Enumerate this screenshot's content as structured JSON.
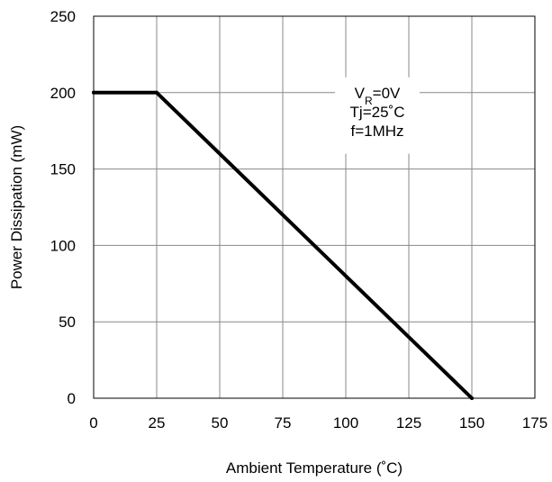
{
  "chart_data": {
    "type": "line",
    "title": "",
    "xlabel": "Ambient Temperature (˚C)",
    "ylabel": "Power Dissipation (mW)",
    "xlim": [
      0,
      175
    ],
    "ylim": [
      0,
      250
    ],
    "xticks": [
      "0",
      "25",
      "50",
      "75",
      "100",
      "125",
      "150",
      "175"
    ],
    "yticks": [
      "0",
      "50",
      "100",
      "150",
      "200",
      "250"
    ],
    "grid": true,
    "series": [
      {
        "x": [
          0,
          25,
          150
        ],
        "y": [
          200,
          200,
          0
        ],
        "color": "#000000"
      }
    ],
    "annotation": {
      "vr_symbol": "V",
      "vr_subscript": "R",
      "vr_value": "=0V",
      "tj": "Tj=25˚C",
      "freq": "f=1MHz"
    }
  }
}
